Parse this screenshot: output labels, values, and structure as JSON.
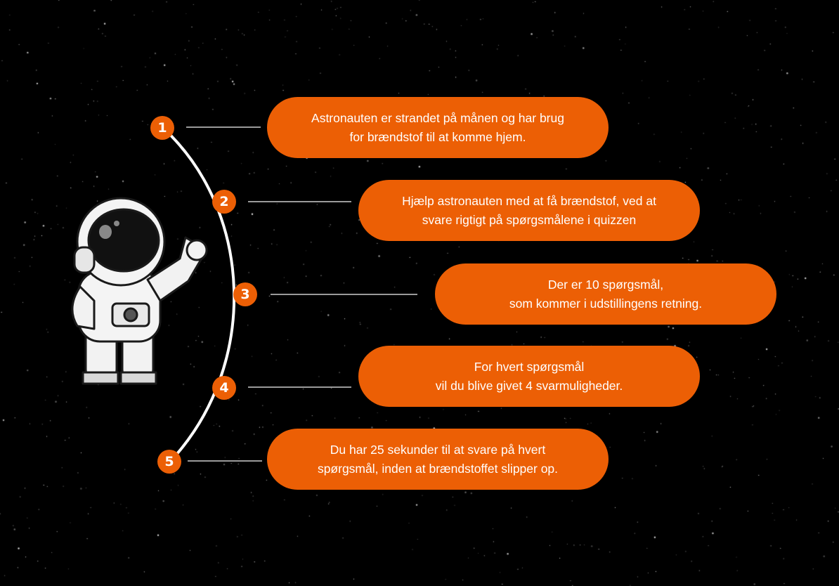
{
  "colors": {
    "accent": "#ec5f05",
    "background": "#000000",
    "text": "#ffffff",
    "connector": "#9a9a9a"
  },
  "illustration": {
    "icon": "astronaut-icon"
  },
  "steps": [
    {
      "number": "1",
      "lines": [
        "Astronauten er strandet på månen og har brug",
        "for brændstof til at komme hjem."
      ]
    },
    {
      "number": "2",
      "lines": [
        "Hjælp astronauten med at få brændstof, ved at",
        "svare rigtigt på spørgsmålene i quizzen"
      ]
    },
    {
      "number": "3",
      "lines": [
        "Der er 10 spørgsmål,",
        "som kommer i udstillingens retning."
      ]
    },
    {
      "number": "4",
      "lines": [
        "For hvert spørgsmål",
        "vil du blive givet 4 svarmuligheder."
      ]
    },
    {
      "number": "5",
      "lines": [
        "Du har 25 sekunder til at svare på hvert",
        "spørgsmål, inden at brændstoffet slipper op."
      ]
    }
  ]
}
